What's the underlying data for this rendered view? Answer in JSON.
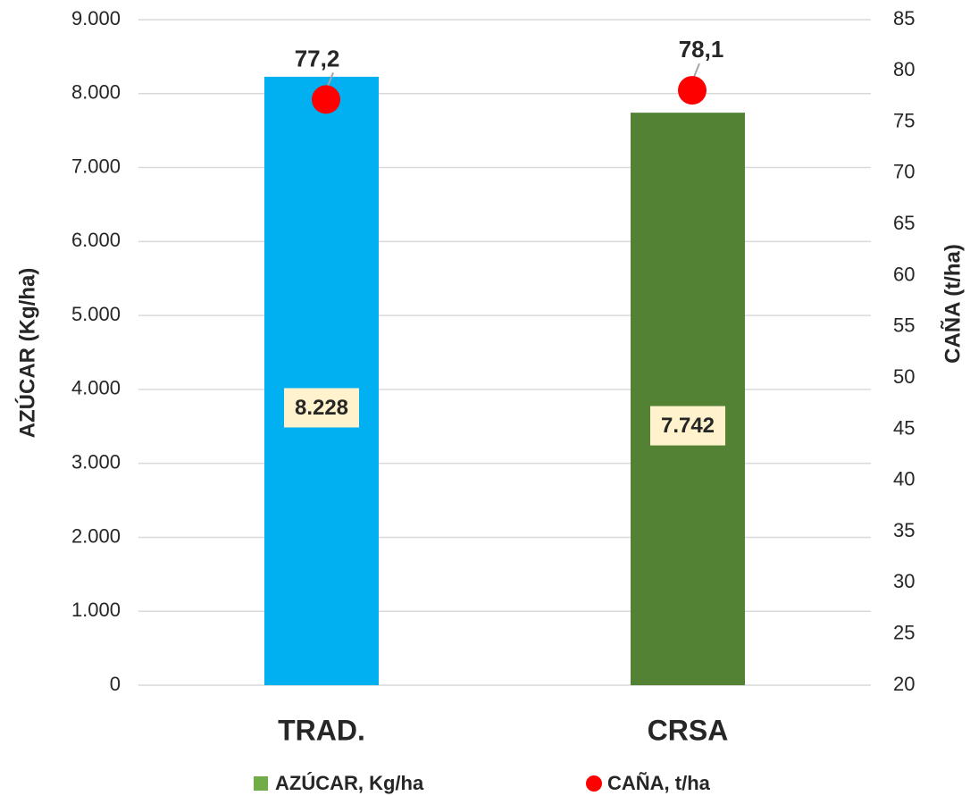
{
  "chart_data": {
    "type": "bar",
    "categories": [
      "TRAD.",
      "CRSA"
    ],
    "series": [
      {
        "name": "AZÚCAR, Kg/ha",
        "type": "bar",
        "color": "#70ad47",
        "bar_colors": [
          "#00b0f0",
          "#548235"
        ],
        "values": [
          8228,
          7742
        ],
        "value_labels": [
          "8.228",
          "7.742"
        ]
      },
      {
        "name": "CAÑA, t/ha",
        "type": "scatter",
        "axis": "y2",
        "color": "#ff0000",
        "values": [
          77.2,
          78.1
        ],
        "value_labels": [
          "77,2",
          "78,1"
        ]
      }
    ],
    "ylabel": "AZÚCAR (Kg/ha)",
    "y2label": "CAÑA (t/ha)",
    "ylim": [
      0,
      9000
    ],
    "yticks": [
      0,
      {
        "value": 1000,
        "label": "1.000"
      },
      {
        "value": 2000,
        "label": "2.000"
      },
      {
        "value": 3000,
        "label": "3.000"
      },
      {
        "value": 4000,
        "label": "4.000"
      },
      {
        "value": 5000,
        "label": "5.000"
      },
      {
        "value": 6000,
        "label": "6.000"
      },
      {
        "value": 7000,
        "label": "7.000"
      },
      {
        "value": 8000,
        "label": "8.000"
      },
      {
        "value": 9000,
        "label": "9.000"
      }
    ],
    "y2lim": [
      20,
      85
    ],
    "y2ticks": [
      20,
      25,
      30,
      35,
      40,
      45,
      50,
      55,
      60,
      65,
      70,
      75,
      80,
      85
    ],
    "grid": true,
    "legend": "bottom"
  }
}
